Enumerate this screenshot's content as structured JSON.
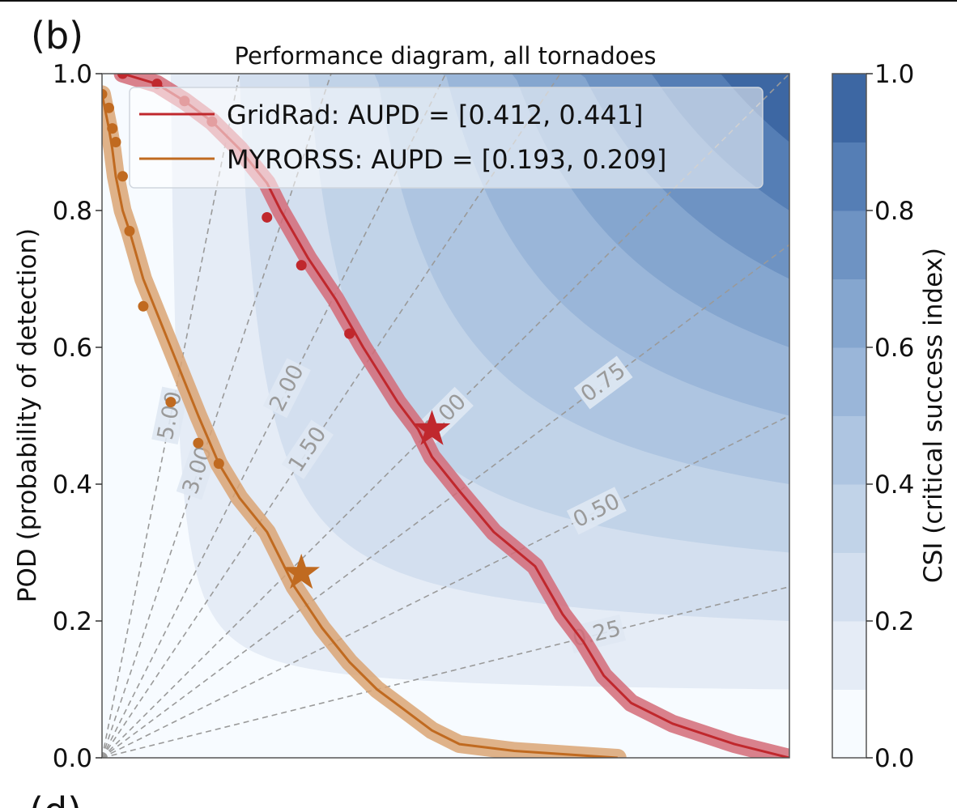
{
  "panel_label": "(b)",
  "next_panel_label": "(d)",
  "chart_data": {
    "type": "line",
    "title": "Performance diagram, all tornadoes",
    "xlabel": "",
    "ylabel": "POD (probability of detection)",
    "xlim": [
      0,
      1
    ],
    "ylim": [
      0,
      1
    ],
    "y_ticks": [
      "0.0",
      "0.2",
      "0.4",
      "0.6",
      "0.8",
      "1.0"
    ],
    "legend_position": "top-right",
    "grid": false,
    "colorbar": {
      "label": "CSI (critical success index)",
      "ticks": [
        "0.0",
        "0.2",
        "0.4",
        "0.6",
        "0.8",
        "1.0"
      ],
      "levels": [
        0,
        0.1,
        0.2,
        0.3,
        0.4,
        0.5,
        0.6,
        0.7,
        0.8,
        0.9,
        1.0
      ],
      "colors": [
        "#f7fbff",
        "#e5ecf6",
        "#d3dfef",
        "#c1d3e8",
        "#aec5e1",
        "#9ab6d9",
        "#85a6cf",
        "#6e93c3",
        "#557eb5",
        "#3d67a3",
        "#26477c"
      ]
    },
    "bias_lines": {
      "values": [
        0.25,
        0.5,
        0.75,
        1.0,
        1.5,
        2.0,
        3.0,
        5.0
      ],
      "labels": [
        "0.25",
        "0.50",
        "0.75",
        "1.00",
        "1.50",
        "2.00",
        "3.00",
        "5.00"
      ],
      "color": "#9a9a9a"
    },
    "series": [
      {
        "name": "GridRad: AUPD = [0.412, 0.441]",
        "color": "#c0282d",
        "band_color": "#d46b78",
        "x": [
          0.03,
          0.08,
          0.12,
          0.16,
          0.2,
          0.24,
          0.26,
          0.3,
          0.34,
          0.38,
          0.43,
          0.46,
          0.48,
          0.52,
          0.57,
          0.63,
          0.67,
          0.7,
          0.73,
          0.77,
          0.83,
          0.92,
          1.0
        ],
        "y": [
          1.0,
          0.985,
          0.96,
          0.93,
          0.89,
          0.84,
          0.8,
          0.73,
          0.67,
          0.6,
          0.52,
          0.48,
          0.44,
          0.39,
          0.33,
          0.28,
          0.21,
          0.17,
          0.12,
          0.08,
          0.05,
          0.02,
          0.0
        ],
        "markers_x": [
          0.03,
          0.08,
          0.12,
          0.16,
          0.24,
          0.29,
          0.36
        ],
        "markers_y": [
          1.0,
          0.985,
          0.96,
          0.93,
          0.79,
          0.72,
          0.62
        ],
        "star": [
          0.48,
          0.48
        ],
        "band_halfwidth": 0.012
      },
      {
        "name": "MYRORSS: AUPD = [0.193, 0.209]",
        "color": "#c06a20",
        "band_color": "#dba574",
        "x": [
          0.0,
          0.01,
          0.015,
          0.02,
          0.03,
          0.04,
          0.06,
          0.1,
          0.14,
          0.17,
          0.2,
          0.24,
          0.28,
          0.32,
          0.36,
          0.4,
          0.44,
          0.48,
          0.52,
          0.6,
          0.75
        ],
        "y": [
          0.97,
          0.92,
          0.89,
          0.85,
          0.8,
          0.77,
          0.7,
          0.6,
          0.5,
          0.43,
          0.38,
          0.33,
          0.25,
          0.19,
          0.14,
          0.1,
          0.07,
          0.04,
          0.02,
          0.01,
          0.0
        ],
        "markers_x": [
          0.0,
          0.01,
          0.015,
          0.02,
          0.03,
          0.04,
          0.06,
          0.1,
          0.14,
          0.17
        ],
        "markers_y": [
          0.97,
          0.95,
          0.92,
          0.9,
          0.85,
          0.77,
          0.66,
          0.52,
          0.46,
          0.43
        ],
        "star": [
          0.29,
          0.27
        ],
        "band_halfwidth": 0.012
      }
    ]
  }
}
